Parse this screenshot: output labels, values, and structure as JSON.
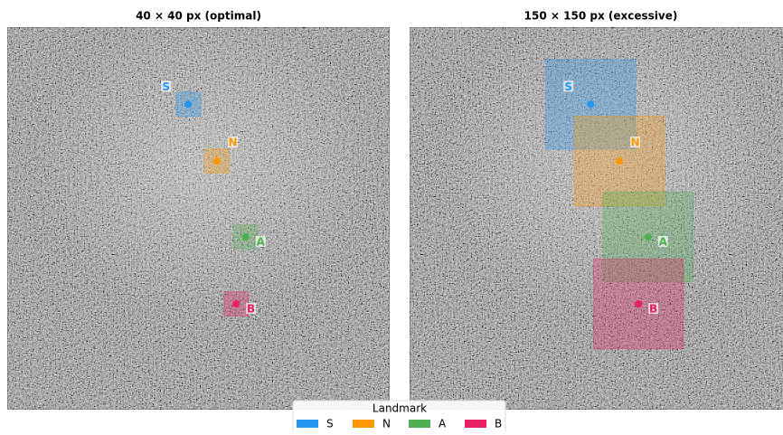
{
  "chart_data": [
    {
      "type": "image",
      "title": "40 × 40 px  (optimal)",
      "xlim": [
        0,
        640
      ],
      "ylim": [
        0,
        640
      ],
      "box_size": 40,
      "landmarks": [
        {
          "label": "S",
          "color": "#2196f3",
          "x": 303,
          "y": 129
        },
        {
          "label": "N",
          "color": "#ff9800",
          "x": 351,
          "y": 224
        },
        {
          "label": "A",
          "color": "#4caf50",
          "x": 399,
          "y": 351
        },
        {
          "label": "B",
          "color": "#e91e63",
          "x": 383,
          "y": 463
        }
      ]
    },
    {
      "type": "image",
      "title": "150 × 150 px  (excessive)",
      "xlim": [
        0,
        640
      ],
      "ylim": [
        0,
        640
      ],
      "box_size": 150,
      "landmarks": [
        {
          "label": "S",
          "color": "#2196f3",
          "x": 303,
          "y": 129
        },
        {
          "label": "N",
          "color": "#ff9800",
          "x": 351,
          "y": 224
        },
        {
          "label": "A",
          "color": "#4caf50",
          "x": 399,
          "y": 351
        },
        {
          "label": "B",
          "color": "#e91e63",
          "x": 383,
          "y": 463
        }
      ]
    }
  ],
  "legend": {
    "title": "Landmark",
    "entries": [
      {
        "label": "S",
        "color": "#2196f3"
      },
      {
        "label": "N",
        "color": "#ff9800"
      },
      {
        "label": "A",
        "color": "#4caf50"
      },
      {
        "label": "B",
        "color": "#e91e63"
      }
    ]
  }
}
